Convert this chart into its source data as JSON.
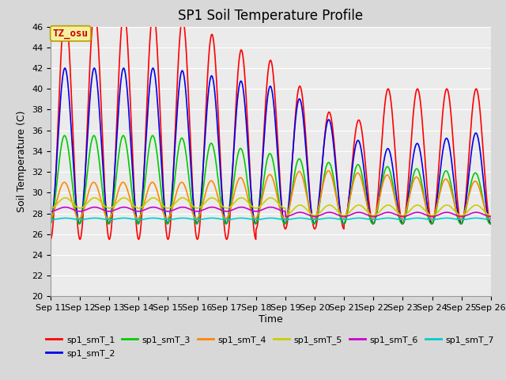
{
  "title": "SP1 Soil Temperature Profile",
  "xlabel": "Time",
  "ylabel": "Soil Temperature (C)",
  "ylim": [
    20,
    46
  ],
  "x_tick_labels": [
    "Sep 11",
    "Sep 12",
    "Sep 13",
    "Sep 14",
    "Sep 15",
    "Sep 16",
    "Sep 17",
    "Sep 18",
    "Sep 19",
    "Sep 20",
    "Sep 21",
    "Sep 22",
    "Sep 23",
    "Sep 24",
    "Sep 25",
    "Sep 26"
  ],
  "annotation_text": "TZ_osu",
  "annotation_box_facecolor": "#f5f0a0",
  "annotation_box_edgecolor": "#b8a000",
  "series_colors": [
    "#ff0000",
    "#0000ee",
    "#00cc00",
    "#ff8800",
    "#cccc00",
    "#cc00cc",
    "#00cccc"
  ],
  "series_names": [
    "sp1_smT_1",
    "sp1_smT_2",
    "sp1_smT_3",
    "sp1_smT_4",
    "sp1_smT_5",
    "sp1_smT_6",
    "sp1_smT_7"
  ],
  "fig_bg_color": "#d8d8d8",
  "plot_bg_color": "#ebebeb",
  "grid_color": "#ffffff",
  "title_fontsize": 12,
  "axis_label_fontsize": 9,
  "tick_fontsize": 8,
  "legend_fontsize": 8,
  "linewidth": 1.2
}
